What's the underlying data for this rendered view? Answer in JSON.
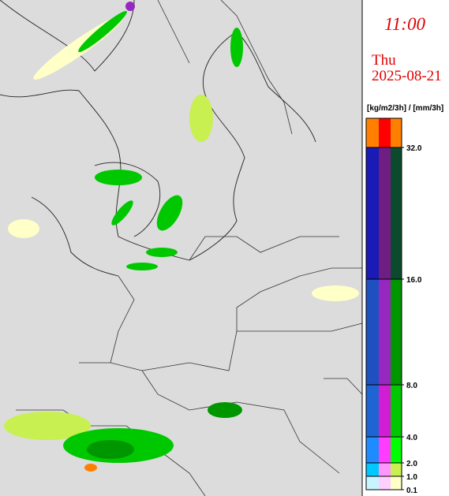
{
  "time": "11:00",
  "weekday": "Thu",
  "date": "2025-08-21",
  "legend": {
    "unit": "[kg/m2/3h] / [mm/3h]",
    "ticks": [
      0.1,
      {
        "value": 1,
        "label": "1.0"
      },
      {
        "value": 2,
        "label": "2.0"
      },
      {
        "value": 4,
        "label": "4.0"
      },
      {
        "value": 8,
        "label": "8.0"
      },
      {
        "value": 16,
        "label": "16.0"
      },
      {
        "value": 32,
        "label": "32.0"
      }
    ],
    "bands": [
      [
        "#c8f4ff",
        "#ffd0ff",
        "#ffffc8"
      ],
      [
        "#00c8ff",
        "#ff96ff",
        "#c8f050"
      ],
      [
        "#1e8cff",
        "#ff3cff",
        "#00ff00"
      ],
      [
        "#1e64d2",
        "#d21ed2",
        "#00c800"
      ],
      [
        "#1e50c0",
        "#9628c0",
        "#009600"
      ],
      [
        "#1a1ab4",
        "#6e1e82",
        "#0c4a2e"
      ],
      [
        "#ff8000",
        "#ff0000",
        "#ff8000"
      ]
    ]
  }
}
